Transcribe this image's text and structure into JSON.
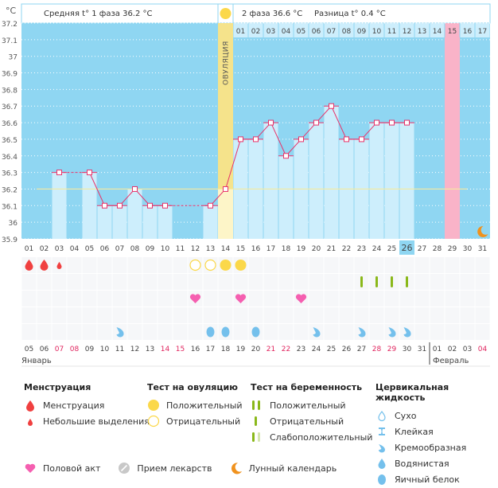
{
  "header": {
    "unit": "°C",
    "phase1_label": "Средняя t° 1 фаза 36.2 °C",
    "phase2_label": "2 фаза 36.6 °C",
    "difference_label": "Разница t° 0.4 °C",
    "ovulation_label": "ОВУЛЯЦИЯ"
  },
  "colors": {
    "background_sky": "#8fd6f2",
    "bar_fill": "#cdeefc",
    "ovulation_column": "#f5e38b",
    "ovulation_bar": "#fdf5c8",
    "pink_column": "#f9b3c8",
    "line": "#e8336a",
    "coverline": "#f5eaa0",
    "today_highlight": "#8fd6f2",
    "menstruation": "#f04040",
    "ovulation_test": "#fbd84a",
    "pregnancy_test": "#8ab81a",
    "heart": "#f55fb0",
    "fluid": "#74c0ec",
    "moon": "#f0921e",
    "red_date": "#e0245e"
  },
  "chart_data": {
    "type": "line",
    "title": "",
    "ylabel": "°C",
    "ylim": [
      35.9,
      37.2
    ],
    "yticks": [
      "37.2",
      "37.1",
      "37",
      "36.9",
      "36.8",
      "36.7",
      "36.6",
      "36.5",
      "36.4",
      "36.3",
      "36.2",
      "36.1",
      "36",
      "35.9"
    ],
    "grid": true,
    "coverline": 36.2,
    "ovulation_cycle_day": 14,
    "pink_cycle_day": 29,
    "today_cycle_day": 26,
    "cycle_days": [
      "01",
      "02",
      "03",
      "04",
      "05",
      "06",
      "07",
      "08",
      "09",
      "10",
      "11",
      "12",
      "13",
      "14",
      "15",
      "16",
      "17",
      "18",
      "19",
      "20",
      "21",
      "22",
      "23",
      "24",
      "25",
      "26",
      "27",
      "28",
      "29",
      "30",
      "31"
    ],
    "phase2_days": [
      "01",
      "02",
      "03",
      "04",
      "05",
      "06",
      "07",
      "08",
      "09",
      "10",
      "11",
      "12",
      "13",
      "14",
      "15",
      "16",
      "17"
    ],
    "temperatures": [
      null,
      null,
      36.3,
      null,
      36.3,
      36.1,
      36.1,
      36.2,
      36.1,
      36.1,
      null,
      null,
      36.1,
      36.2,
      36.5,
      36.5,
      36.6,
      36.4,
      36.5,
      36.6,
      36.7,
      36.5,
      36.5,
      36.6,
      36.6,
      36.6,
      null,
      null,
      null,
      null,
      null
    ],
    "calendar_dates": [
      "05",
      "06",
      "07",
      "08",
      "09",
      "10",
      "11",
      "12",
      "13",
      "14",
      "15",
      "16",
      "17",
      "18",
      "19",
      "20",
      "21",
      "22",
      "23",
      "24",
      "25",
      "26",
      "27",
      "28",
      "29",
      "30",
      "31",
      "01",
      "02",
      "03",
      "04"
    ],
    "red_dates": [
      "07",
      "08",
      "14",
      "15",
      "21",
      "22",
      "28",
      "29",
      "04"
    ],
    "months": [
      {
        "label": "Январь",
        "start_index": 0
      },
      {
        "label": "Февраль",
        "start_index": 27
      }
    ],
    "today_date": "30",
    "moon_cycle_day": 31,
    "events": {
      "menstruation": [
        {
          "day": 1,
          "kind": "full"
        },
        {
          "day": 2,
          "kind": "full"
        },
        {
          "day": 3,
          "kind": "light"
        }
      ],
      "ovulation_test": [
        {
          "day": 12,
          "kind": "negative"
        },
        {
          "day": 13,
          "kind": "negative"
        },
        {
          "day": 14,
          "kind": "positive"
        },
        {
          "day": 15,
          "kind": "positive"
        }
      ],
      "pregnancy_test": [
        {
          "day": 23,
          "kind": "negative"
        },
        {
          "day": 24,
          "kind": "negative"
        },
        {
          "day": 25,
          "kind": "negative"
        },
        {
          "day": 26,
          "kind": "negative"
        }
      ],
      "intercourse": [
        12,
        15,
        19
      ],
      "medication": [],
      "cervical_fluid": [
        {
          "day": 7,
          "kind": "creamy"
        },
        {
          "day": 13,
          "kind": "eggwhite"
        },
        {
          "day": 14,
          "kind": "eggwhite"
        },
        {
          "day": 16,
          "kind": "eggwhite"
        },
        {
          "day": 20,
          "kind": "creamy"
        },
        {
          "day": 23,
          "kind": "creamy"
        },
        {
          "day": 25,
          "kind": "creamy"
        },
        {
          "day": 26,
          "kind": "creamy"
        }
      ]
    }
  },
  "legend": {
    "menstruation": {
      "title": "Менструация",
      "items": [
        "Менструация",
        "Небольшие выделения"
      ]
    },
    "ovulation_test": {
      "title": "Тест на овуляцию",
      "items": [
        "Положительный",
        "Отрицательный"
      ]
    },
    "pregnancy_test": {
      "title": "Тест на беременность",
      "items": [
        "Положительный",
        "Отрицательный",
        "Слабоположительный"
      ]
    },
    "cervical_fluid": {
      "title": "Цервикальная жидкость",
      "items": [
        "Сухо",
        "Клейкая",
        "Кремообразная",
        "Водянистая",
        "Яичный белок"
      ]
    },
    "bottom": [
      "Половой акт",
      "Прием лекарств",
      "Лунный календарь"
    ]
  }
}
